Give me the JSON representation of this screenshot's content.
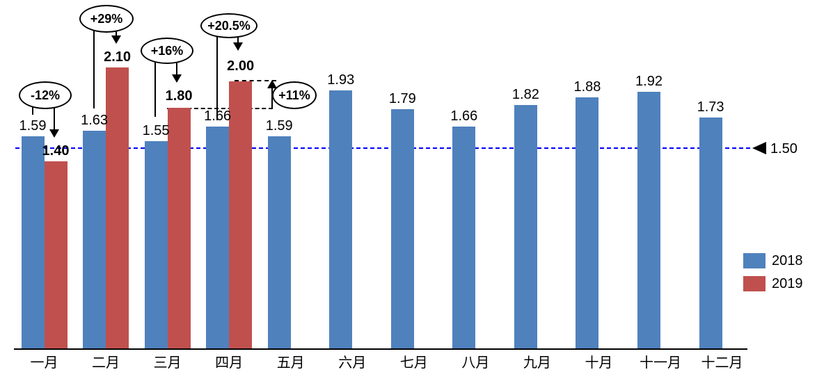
{
  "chart_data": {
    "type": "bar",
    "title": "",
    "xlabel": "",
    "ylabel": "",
    "categories": [
      "一月",
      "二月",
      "三月",
      "四月",
      "五月",
      "六月",
      "七月",
      "八月",
      "九月",
      "十月",
      "十一月",
      "十二月"
    ],
    "series": [
      {
        "name": "2018",
        "color": "#4F81BD",
        "values": [
          1.59,
          1.63,
          1.55,
          1.66,
          1.59,
          1.93,
          1.79,
          1.66,
          1.82,
          1.88,
          1.92,
          1.73
        ]
      },
      {
        "name": "2019",
        "color": "#C0504D",
        "values": [
          1.4,
          2.1,
          1.8,
          2.0,
          null,
          null,
          null,
          null,
          null,
          null,
          null,
          null
        ]
      }
    ],
    "value_labels_visible": true,
    "ylim": [
      0,
      2.6
    ],
    "grid": false,
    "legend_position": "right",
    "reference_line": {
      "value": 1.5,
      "label": "1.50",
      "color": "#0000FF",
      "style": "dashed",
      "marker": "left-triangle"
    },
    "annotations": [
      {
        "label": "-12%",
        "compares": "一月 2019 vs 2018"
      },
      {
        "label": "+29%",
        "compares": "二月 2019 vs 2018"
      },
      {
        "label": "+16%",
        "compares": "三月 2019 vs 2018"
      },
      {
        "label": "+20.5%",
        "compares": "四月 2019 vs 2018"
      },
      {
        "label": "+11%",
        "compares": "四月 2019 vs 三月 2019"
      }
    ]
  }
}
